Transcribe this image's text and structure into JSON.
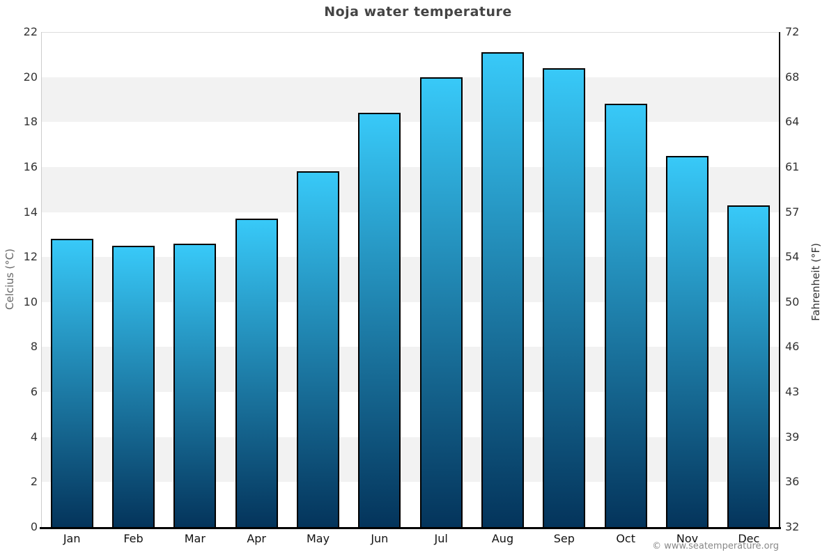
{
  "header": {
    "title": "Noja water temperature"
  },
  "axes": {
    "left_title": "Celcius (°C)",
    "right_title": "Fahrenheit (°F)"
  },
  "footer": {
    "credit": "© www.seatemperature.org"
  },
  "colors": {
    "bar_top": "#38c9f8",
    "bar_bottom": "#04345b",
    "bar_border": "#000000",
    "band": "#f2f2f2",
    "grid_top_line": "#dddddd",
    "left_axis_line": "#cccccc",
    "right_axis_line": "#111111",
    "baseline": "#000000",
    "title_text": "#444444",
    "tick_text": "#333333",
    "month_text": "#111111",
    "left_axis_title_text": "#666666",
    "right_axis_title_text": "#333333",
    "credit_text": "#888888"
  },
  "chart_data": {
    "type": "bar",
    "title": "Noja water temperature",
    "categories": [
      "Jan",
      "Feb",
      "Mar",
      "Apr",
      "May",
      "Jun",
      "Jul",
      "Aug",
      "Sep",
      "Oct",
      "Nov",
      "Dec"
    ],
    "values": [
      12.8,
      12.5,
      12.6,
      13.7,
      15.8,
      18.4,
      20.0,
      21.1,
      20.4,
      18.8,
      16.5,
      14.3
    ],
    "xlabel": "",
    "ylabel_left": "Celcius (°C)",
    "ylabel_right": "Fahrenheit (°F)",
    "ylim_left": [
      0,
      22
    ],
    "ylim_right": [
      32,
      72
    ],
    "y_left_ticks": [
      0,
      2,
      4,
      6,
      8,
      10,
      12,
      14,
      16,
      18,
      20,
      22
    ],
    "y_right_ticks": [
      32,
      36,
      39,
      43,
      46,
      50,
      54,
      57,
      61,
      64,
      68,
      72
    ],
    "grid": "alternating-horizontal-bands",
    "legend": "none"
  }
}
